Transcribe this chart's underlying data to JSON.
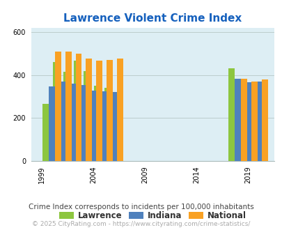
{
  "title": "Lawrence Violent Crime Index",
  "subtitle": "Crime Index corresponds to incidents per 100,000 inhabitants",
  "copyright": "© 2025 CityRating.com - https://www.cityrating.com/crime-statistics/",
  "legend_labels": [
    "Lawrence",
    "Indiana",
    "National"
  ],
  "bar_colors": [
    "#8dc63f",
    "#4f81bd",
    "#f9a123"
  ],
  "years": [
    2000,
    2001,
    2002,
    2003,
    2004,
    2005,
    2006,
    2018,
    2019,
    2020
  ],
  "lawrence": [
    265,
    460,
    415,
    465,
    418,
    350,
    340,
    430,
    360,
    355
  ],
  "indiana": [
    348,
    370,
    358,
    352,
    328,
    325,
    322,
    382,
    365,
    368
  ],
  "national": [
    508,
    508,
    500,
    475,
    465,
    470,
    475,
    383,
    370,
    379
  ],
  "ylim": [
    0,
    620
  ],
  "yticks": [
    0,
    200,
    400,
    600
  ],
  "xtick_years": [
    1999,
    2004,
    2009,
    2014,
    2019
  ],
  "bg_color": "#ddeef4",
  "title_color": "#1560bd",
  "subtitle_color": "#444444",
  "copyright_color": "#aaaaaa",
  "grid_color": "#bbcccc",
  "bar_width": 0.6,
  "title_fontsize": 11,
  "subtitle_fontsize": 7.5,
  "copyright_fontsize": 6.5,
  "legend_fontsize": 8.5,
  "tick_fontsize": 7
}
